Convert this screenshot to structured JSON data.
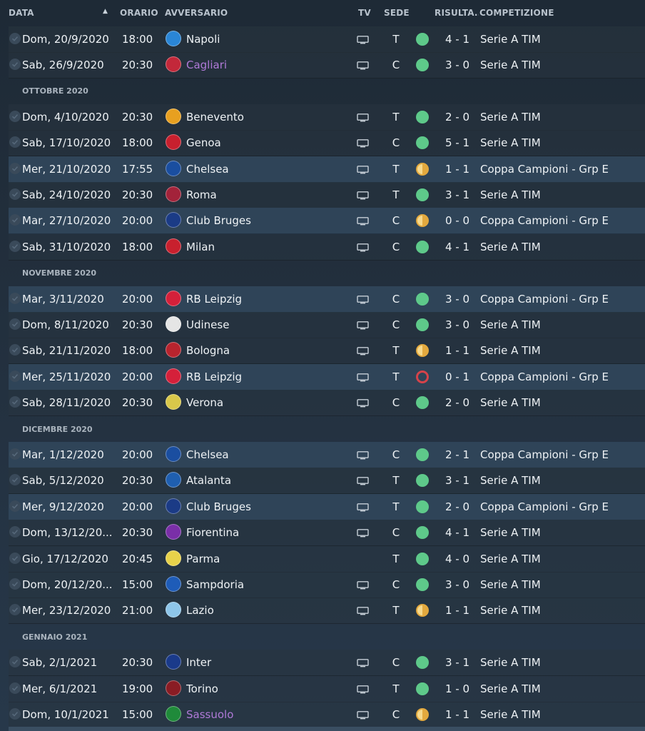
{
  "header": {
    "date": "DATA",
    "sort_icon": "triangle-up",
    "time": "ORARIO",
    "opponent": "AVVERSARIO",
    "tv": "TV",
    "venue": "SEDE",
    "result": "RISULTA...",
    "competition": "COMPETIZIONE"
  },
  "colors": {
    "win": "#5ec98a",
    "draw": "#e3a93e",
    "loss": "#d6434a",
    "highlight_row": "#2f4458",
    "purple_link": "#b07ad8"
  },
  "entries": [
    {
      "kind": "match",
      "date": "Dom, 20/9/2020",
      "time": "18:00",
      "opponent": "Napoli",
      "crest": "napoli-crest-icon",
      "crest_color": "#2a86d6",
      "tv": true,
      "venue": "T",
      "result": "W",
      "score": "4 - 1",
      "competition": "Serie A TIM",
      "highlight": false,
      "purple": false
    },
    {
      "kind": "match",
      "date": "Sab, 26/9/2020",
      "time": "20:30",
      "opponent": "Cagliari",
      "crest": "cagliari-crest-icon",
      "crest_color": "#c3283a",
      "tv": true,
      "venue": "C",
      "result": "W",
      "score": "3 - 0",
      "competition": "Serie A TIM",
      "highlight": false,
      "purple": true
    },
    {
      "kind": "month",
      "label": "OTTOBRE 2020"
    },
    {
      "kind": "match",
      "date": "Dom, 4/10/2020",
      "time": "20:30",
      "opponent": "Benevento",
      "crest": "benevento-crest-icon",
      "crest_color": "#e8a020",
      "tv": true,
      "venue": "T",
      "result": "W",
      "score": "2 - 0",
      "competition": "Serie A TIM",
      "highlight": false,
      "purple": false
    },
    {
      "kind": "match",
      "date": "Sab, 17/10/2020",
      "time": "18:00",
      "opponent": "Genoa",
      "crest": "genoa-crest-icon",
      "crest_color": "#c8202e",
      "tv": true,
      "venue": "C",
      "result": "W",
      "score": "5 - 1",
      "competition": "Serie A TIM",
      "highlight": false,
      "purple": false
    },
    {
      "kind": "match",
      "date": "Mer, 21/10/2020",
      "time": "17:55",
      "opponent": "Chelsea",
      "crest": "chelsea-crest-icon",
      "crest_color": "#1a4ea0",
      "tv": true,
      "venue": "T",
      "result": "D",
      "score": "1 - 1",
      "competition": "Coppa Campioni - Grp E",
      "highlight": true,
      "purple": false
    },
    {
      "kind": "match",
      "date": "Sab, 24/10/2020",
      "time": "20:30",
      "opponent": "Roma",
      "crest": "roma-crest-icon",
      "crest_color": "#a3233a",
      "tv": true,
      "venue": "T",
      "result": "W",
      "score": "3 - 1",
      "competition": "Serie A TIM",
      "highlight": false,
      "purple": false
    },
    {
      "kind": "match",
      "date": "Mar, 27/10/2020",
      "time": "20:00",
      "opponent": "Club Bruges",
      "crest": "club-bruges-crest-icon",
      "crest_color": "#1b3b86",
      "tv": true,
      "venue": "C",
      "result": "D",
      "score": "0 - 0",
      "competition": "Coppa Campioni - Grp E",
      "highlight": true,
      "purple": false
    },
    {
      "kind": "match",
      "date": "Sab, 31/10/2020",
      "time": "18:00",
      "opponent": "Milan",
      "crest": "milan-crest-icon",
      "crest_color": "#c8202e",
      "tv": true,
      "venue": "C",
      "result": "W",
      "score": "4 - 1",
      "competition": "Serie A TIM",
      "highlight": false,
      "purple": false
    },
    {
      "kind": "month",
      "label": "NOVEMBRE 2020"
    },
    {
      "kind": "match",
      "date": "Mar, 3/11/2020",
      "time": "20:00",
      "opponent": "RB Leipzig",
      "crest": "rb-leipzig-crest-icon",
      "crest_color": "#d5203a",
      "tv": true,
      "venue": "C",
      "result": "W",
      "score": "3 - 0",
      "competition": "Coppa Campioni - Grp E",
      "highlight": true,
      "purple": false
    },
    {
      "kind": "match",
      "date": "Dom, 8/11/2020",
      "time": "20:30",
      "opponent": "Udinese",
      "crest": "udinese-crest-icon",
      "crest_color": "#e5e5e5",
      "tv": true,
      "venue": "C",
      "result": "W",
      "score": "3 - 0",
      "competition": "Serie A TIM",
      "highlight": false,
      "purple": false
    },
    {
      "kind": "match",
      "date": "Sab, 21/11/2020",
      "time": "18:00",
      "opponent": "Bologna",
      "crest": "bologna-crest-icon",
      "crest_color": "#b8242e",
      "tv": true,
      "venue": "T",
      "result": "D",
      "score": "1 - 1",
      "competition": "Serie A TIM",
      "highlight": false,
      "purple": false
    },
    {
      "kind": "match",
      "date": "Mer, 25/11/2020",
      "time": "20:00",
      "opponent": "RB Leipzig",
      "crest": "rb-leipzig-crest-icon",
      "crest_color": "#d5203a",
      "tv": true,
      "venue": "T",
      "result": "L",
      "score": "0 - 1",
      "competition": "Coppa Campioni - Grp E",
      "highlight": true,
      "purple": false
    },
    {
      "kind": "match",
      "date": "Sab, 28/11/2020",
      "time": "20:30",
      "opponent": "Verona",
      "crest": "verona-crest-icon",
      "crest_color": "#d9c84a",
      "tv": true,
      "venue": "C",
      "result": "W",
      "score": "2 - 0",
      "competition": "Serie A TIM",
      "highlight": false,
      "purple": false
    },
    {
      "kind": "month",
      "label": "DICEMBRE 2020"
    },
    {
      "kind": "match",
      "date": "Mar, 1/12/2020",
      "time": "20:00",
      "opponent": "Chelsea",
      "crest": "chelsea-crest-icon",
      "crest_color": "#1a4ea0",
      "tv": true,
      "venue": "C",
      "result": "W",
      "score": "2 - 1",
      "competition": "Coppa Campioni - Grp E",
      "highlight": true,
      "purple": false
    },
    {
      "kind": "match",
      "date": "Sab, 5/12/2020",
      "time": "20:30",
      "opponent": "Atalanta",
      "crest": "atalanta-crest-icon",
      "crest_color": "#1f5fb0",
      "tv": true,
      "venue": "T",
      "result": "W",
      "score": "3 - 1",
      "competition": "Serie A TIM",
      "highlight": false,
      "purple": false
    },
    {
      "kind": "match",
      "date": "Mer, 9/12/2020",
      "time": "20:00",
      "opponent": "Club Bruges",
      "crest": "club-bruges-crest-icon",
      "crest_color": "#1b3b86",
      "tv": true,
      "venue": "T",
      "result": "W",
      "score": "2 - 0",
      "competition": "Coppa Campioni - Grp E",
      "highlight": true,
      "purple": false
    },
    {
      "kind": "match",
      "date": "Dom, 13/12/20...",
      "time": "20:30",
      "opponent": "Fiorentina",
      "crest": "fiorentina-crest-icon",
      "crest_color": "#7a2fa8",
      "tv": true,
      "venue": "C",
      "result": "W",
      "score": "4 - 1",
      "competition": "Serie A TIM",
      "highlight": false,
      "purple": false
    },
    {
      "kind": "match",
      "date": "Gio, 17/12/2020",
      "time": "20:45",
      "opponent": "Parma",
      "crest": "parma-crest-icon",
      "crest_color": "#e8d24a",
      "tv": false,
      "venue": "T",
      "result": "W",
      "score": "4 - 0",
      "competition": "Serie A TIM",
      "highlight": false,
      "purple": false
    },
    {
      "kind": "match",
      "date": "Dom, 20/12/20...",
      "time": "15:00",
      "opponent": "Sampdoria",
      "crest": "sampdoria-crest-icon",
      "crest_color": "#1e5cb8",
      "tv": true,
      "venue": "C",
      "result": "W",
      "score": "3 - 0",
      "competition": "Serie A TIM",
      "highlight": false,
      "purple": false
    },
    {
      "kind": "match",
      "date": "Mer, 23/12/2020",
      "time": "21:00",
      "opponent": "Lazio",
      "crest": "lazio-crest-icon",
      "crest_color": "#8ec6ea",
      "tv": true,
      "venue": "T",
      "result": "D",
      "score": "1 - 1",
      "competition": "Serie A TIM",
      "highlight": false,
      "purple": false
    },
    {
      "kind": "month",
      "label": "GENNAIO 2021"
    },
    {
      "kind": "match",
      "date": "Sab, 2/1/2021",
      "time": "20:30",
      "opponent": "Inter",
      "crest": "inter-crest-icon",
      "crest_color": "#1a3a8a",
      "tv": true,
      "venue": "C",
      "result": "W",
      "score": "3 - 1",
      "competition": "Serie A TIM",
      "highlight": false,
      "purple": false
    },
    {
      "kind": "match",
      "date": "Mer, 6/1/2021",
      "time": "19:00",
      "opponent": "Torino",
      "crest": "torino-crest-icon",
      "crest_color": "#8a1c24",
      "tv": true,
      "venue": "T",
      "result": "W",
      "score": "1 - 0",
      "competition": "Serie A TIM",
      "highlight": false,
      "purple": false
    },
    {
      "kind": "match",
      "date": "Dom, 10/1/2021",
      "time": "15:00",
      "opponent": "Sassuolo",
      "crest": "sassuolo-crest-icon",
      "crest_color": "#1f8a3a",
      "tv": true,
      "venue": "C",
      "result": "D",
      "score": "1 - 1",
      "competition": "Serie A TIM",
      "highlight": false,
      "purple": true
    }
  ]
}
